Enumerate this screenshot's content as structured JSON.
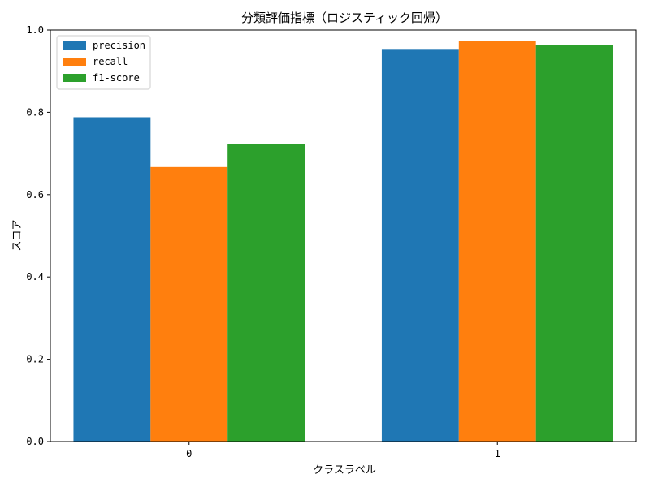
{
  "chart_data": {
    "type": "bar",
    "title": "分類評価指標（ロジスティック回帰）",
    "xlabel": "クラスラベル",
    "ylabel": "スコア",
    "categories": [
      "0",
      "1"
    ],
    "ylim": [
      0.0,
      1.0
    ],
    "yticks": [
      "0.0",
      "0.2",
      "0.4",
      "0.6",
      "0.8",
      "1.0"
    ],
    "grid": false,
    "legend_position": "top-left",
    "series": [
      {
        "name": "precision",
        "color": "#1f77b4",
        "values": [
          0.788,
          0.954
        ]
      },
      {
        "name": "recall",
        "color": "#ff7f0e",
        "values": [
          0.667,
          0.973
        ]
      },
      {
        "name": "f1-score",
        "color": "#2ca02c",
        "values": [
          0.722,
          0.963
        ]
      }
    ]
  }
}
